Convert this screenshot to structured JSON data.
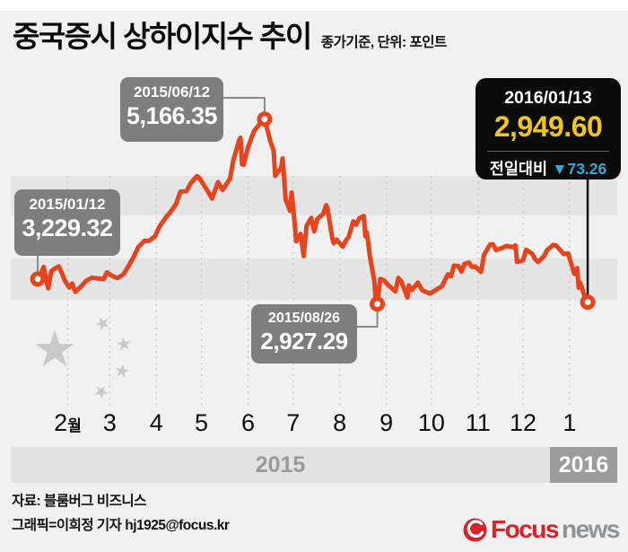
{
  "header": {
    "title": "중국증시 상하이지수 추이",
    "subtitle": "종가기준, 단위: 포인트"
  },
  "annotations": {
    "start": {
      "date": "2015/01/12",
      "value": "3,229.32"
    },
    "peak": {
      "date": "2015/06/12",
      "value": "5,166.35"
    },
    "trough": {
      "date": "2015/08/26",
      "value": "2,927.29"
    },
    "latest": {
      "date": "2016/01/13",
      "value": "2,949.60",
      "change_label": "전일대비",
      "change": "▼73.26"
    }
  },
  "axis": {
    "months": [
      "2",
      "3",
      "4",
      "5",
      "6",
      "7",
      "8",
      "9",
      "10",
      "11",
      "12",
      "1"
    ],
    "month_unit": "월",
    "years": [
      "2015",
      "2016"
    ]
  },
  "footer": {
    "source": "자료: 블룸버그 비즈니스",
    "credit": "그래픽=이희정 기자 hj1925@focus.kr",
    "logo_brand": "Focus",
    "logo_suffix": "news"
  },
  "icons": {
    "star": "★"
  },
  "colors": {
    "line": "#e8431c",
    "marker_hole": "#ffffff",
    "gridline": "#c8c8c8",
    "connector_gray": "#8a8a8a",
    "connector_black": "#111111",
    "annotation_box": "#7e7e7e",
    "latest_box": "#0b0b0b",
    "latest_value_yellow": "#f0c51c",
    "change_down_blue": "#2fa8e1",
    "logo_red": "#d8232a",
    "logo_gray": "#8e9398"
  },
  "chart_data": {
    "type": "line",
    "title": "중국증시 상하이지수 추이",
    "unit": "포인트",
    "basis": "종가기준",
    "x_range": [
      "2015-01-12",
      "2016-01-13"
    ],
    "xlabel_months": [
      "2월",
      "3",
      "4",
      "5",
      "6",
      "7",
      "8",
      "9",
      "10",
      "11",
      "12",
      "1"
    ],
    "year_bands": [
      "2015",
      "2016"
    ],
    "markers": [
      {
        "name": "start",
        "date": "2015-01-12",
        "value": 3229.32
      },
      {
        "name": "peak",
        "date": "2015-06-12",
        "value": 5166.35
      },
      {
        "name": "trough",
        "date": "2015-08-26",
        "value": 2927.29
      },
      {
        "name": "latest",
        "date": "2016-01-13",
        "value": 2949.6
      }
    ],
    "series": [
      {
        "name": "상하이지수",
        "points": [
          [
            "2015-01-12",
            3229.32
          ],
          [
            "2015-01-14",
            3286
          ],
          [
            "2015-01-16",
            3376
          ],
          [
            "2015-01-19",
            3116
          ],
          [
            "2015-01-21",
            3323
          ],
          [
            "2015-01-23",
            3352
          ],
          [
            "2015-01-26",
            3383
          ],
          [
            "2015-01-28",
            3305
          ],
          [
            "2015-01-30",
            3210
          ],
          [
            "2015-02-02",
            3128
          ],
          [
            "2015-02-04",
            3175
          ],
          [
            "2015-02-06",
            3075
          ],
          [
            "2015-02-10",
            3141
          ],
          [
            "2015-02-13",
            3204
          ],
          [
            "2015-02-17",
            3246
          ],
          [
            "2015-02-25",
            3228
          ],
          [
            "2015-02-27",
            3310
          ],
          [
            "2015-03-03",
            3263
          ],
          [
            "2015-03-06",
            3241
          ],
          [
            "2015-03-10",
            3286
          ],
          [
            "2015-03-13",
            3373
          ],
          [
            "2015-03-17",
            3502
          ],
          [
            "2015-03-20",
            3617
          ],
          [
            "2015-03-24",
            3691
          ],
          [
            "2015-03-27",
            3691
          ],
          [
            "2015-03-31",
            3747
          ],
          [
            "2015-04-03",
            3864
          ],
          [
            "2015-04-08",
            3994
          ],
          [
            "2015-04-10",
            4034
          ],
          [
            "2015-04-14",
            4136
          ],
          [
            "2015-04-17",
            4287
          ],
          [
            "2015-04-21",
            4294
          ],
          [
            "2015-04-24",
            4394
          ],
          [
            "2015-04-28",
            4476
          ],
          [
            "2015-04-30",
            4441
          ],
          [
            "2015-05-05",
            4298
          ],
          [
            "2015-05-08",
            4205
          ],
          [
            "2015-05-12",
            4402
          ],
          [
            "2015-05-15",
            4308
          ],
          [
            "2015-05-20",
            4446
          ],
          [
            "2015-05-22",
            4657
          ],
          [
            "2015-05-26",
            4910
          ],
          [
            "2015-05-27",
            4941
          ],
          [
            "2015-05-28",
            4620
          ],
          [
            "2015-05-29",
            4611
          ],
          [
            "2015-06-01",
            4828
          ],
          [
            "2015-06-05",
            5023
          ],
          [
            "2015-06-09",
            5113
          ],
          [
            "2015-06-12",
            5166.35
          ],
          [
            "2015-06-16",
            4888
          ],
          [
            "2015-06-18",
            4785
          ],
          [
            "2015-06-19",
            4478
          ],
          [
            "2015-06-23",
            4576
          ],
          [
            "2015-06-24",
            4690
          ],
          [
            "2015-06-26",
            4192
          ],
          [
            "2015-06-29",
            4053
          ],
          [
            "2015-06-30",
            4277
          ],
          [
            "2015-07-02",
            3912
          ],
          [
            "2015-07-03",
            3687
          ],
          [
            "2015-07-06",
            3776
          ],
          [
            "2015-07-08",
            3507
          ],
          [
            "2015-07-09",
            3709
          ],
          [
            "2015-07-10",
            3877
          ],
          [
            "2015-07-13",
            3970
          ],
          [
            "2015-07-15",
            3806
          ],
          [
            "2015-07-17",
            3957
          ],
          [
            "2015-07-21",
            4018
          ],
          [
            "2015-07-23",
            4124
          ],
          [
            "2015-07-24",
            4071
          ],
          [
            "2015-07-27",
            3726
          ],
          [
            "2015-07-28",
            3663
          ],
          [
            "2015-07-30",
            3706
          ],
          [
            "2015-08-03",
            3622
          ],
          [
            "2015-08-05",
            3694
          ],
          [
            "2015-08-07",
            3744
          ],
          [
            "2015-08-10",
            3928
          ],
          [
            "2015-08-12",
            3886
          ],
          [
            "2015-08-14",
            3965
          ],
          [
            "2015-08-17",
            3994
          ],
          [
            "2015-08-18",
            3748
          ],
          [
            "2015-08-19",
            3794
          ],
          [
            "2015-08-20",
            3664
          ],
          [
            "2015-08-21",
            3508
          ],
          [
            "2015-08-24",
            3210
          ],
          [
            "2015-08-25",
            2965
          ],
          [
            "2015-08-26",
            2927.29
          ],
          [
            "2015-08-27",
            3084
          ],
          [
            "2015-08-28",
            3232
          ],
          [
            "2015-08-31",
            3206
          ],
          [
            "2015-09-02",
            3160
          ],
          [
            "2015-09-07",
            3080
          ],
          [
            "2015-09-09",
            3243
          ],
          [
            "2015-09-11",
            3200
          ],
          [
            "2015-09-15",
            3005
          ],
          [
            "2015-09-16",
            3152
          ],
          [
            "2015-09-18",
            3098
          ],
          [
            "2015-09-22",
            3186
          ],
          [
            "2015-09-25",
            3092
          ],
          [
            "2015-09-30",
            3053
          ],
          [
            "2015-10-08",
            3143
          ],
          [
            "2015-10-12",
            3287
          ],
          [
            "2015-10-14",
            3262
          ],
          [
            "2015-10-16",
            3391
          ],
          [
            "2015-10-19",
            3387
          ],
          [
            "2015-10-21",
            3320
          ],
          [
            "2015-10-23",
            3412
          ],
          [
            "2015-10-26",
            3429
          ],
          [
            "2015-10-28",
            3375
          ],
          [
            "2015-10-30",
            3383
          ],
          [
            "2015-11-03",
            3316
          ],
          [
            "2015-11-05",
            3523
          ],
          [
            "2015-11-09",
            3647
          ],
          [
            "2015-11-11",
            3650
          ],
          [
            "2015-11-13",
            3581
          ],
          [
            "2015-11-17",
            3605
          ],
          [
            "2015-11-20",
            3630
          ],
          [
            "2015-11-24",
            3616
          ],
          [
            "2015-11-26",
            3636
          ],
          [
            "2015-11-27",
            3436
          ],
          [
            "2015-12-01",
            3456
          ],
          [
            "2015-12-03",
            3585
          ],
          [
            "2015-12-07",
            3537
          ],
          [
            "2015-12-09",
            3472
          ],
          [
            "2015-12-11",
            3435
          ],
          [
            "2015-12-15",
            3510
          ],
          [
            "2015-12-17",
            3580
          ],
          [
            "2015-12-21",
            3642
          ],
          [
            "2015-12-23",
            3636
          ],
          [
            "2015-12-28",
            3533
          ],
          [
            "2015-12-31",
            3539
          ],
          [
            "2016-01-04",
            3296
          ],
          [
            "2016-01-05",
            3287
          ],
          [
            "2016-01-06",
            3361
          ],
          [
            "2016-01-07",
            3125
          ],
          [
            "2016-01-08",
            3186
          ],
          [
            "2016-01-11",
            3016
          ],
          [
            "2016-01-12",
            3023
          ],
          [
            "2016-01-13",
            2949.6
          ]
        ]
      }
    ]
  }
}
